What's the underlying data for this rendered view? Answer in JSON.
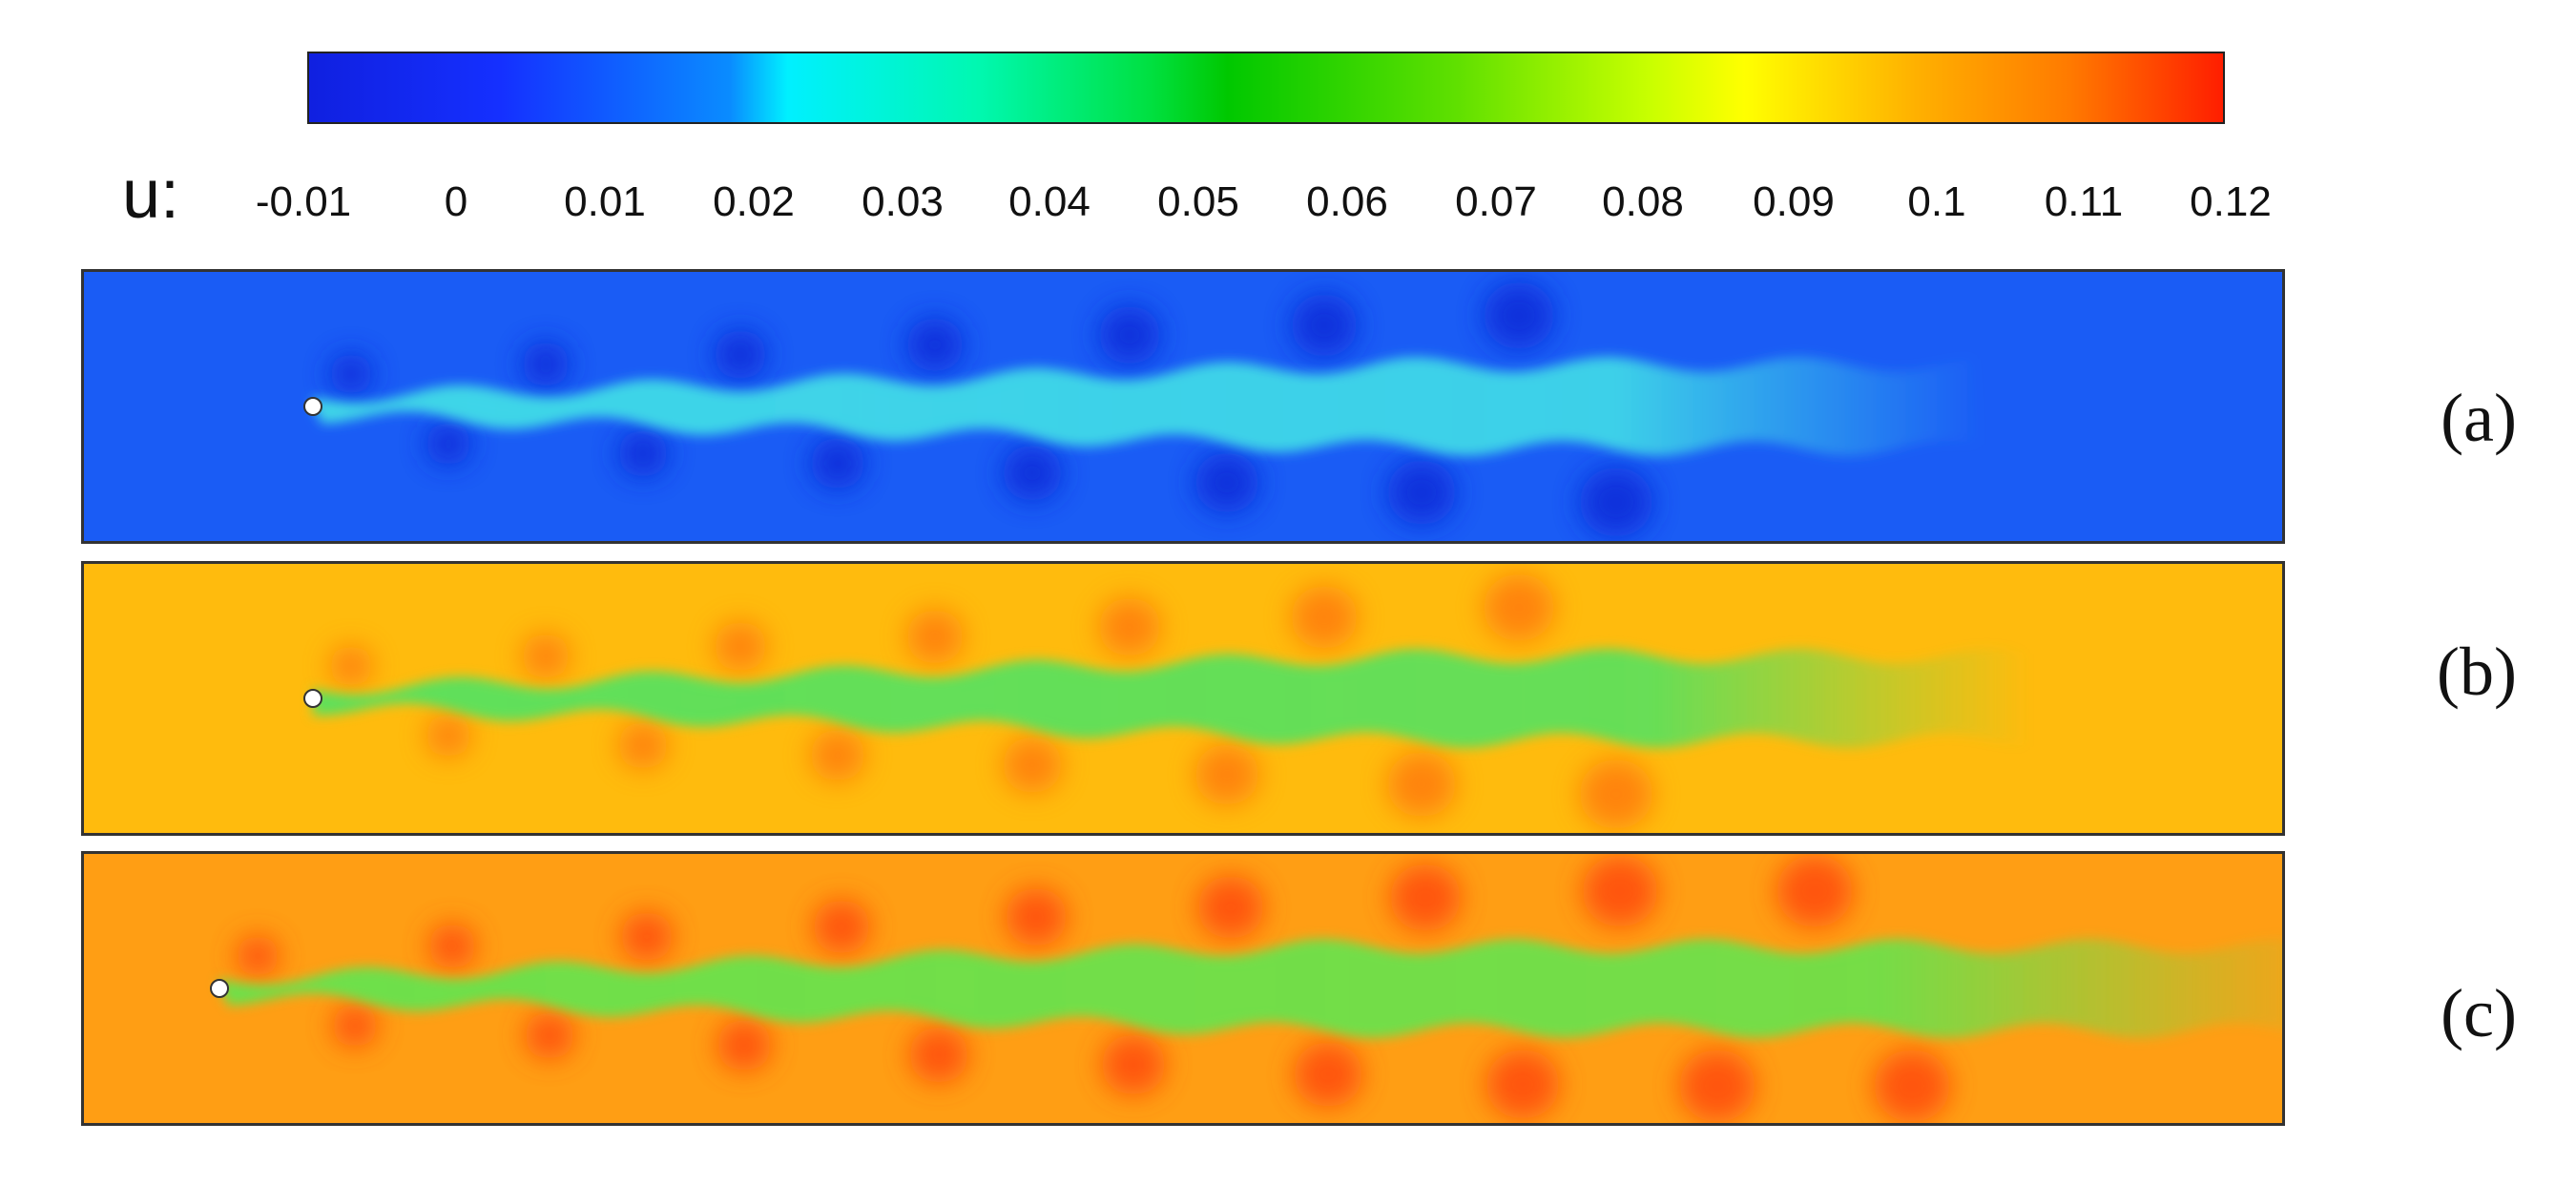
{
  "colorbar": {
    "variable_label": "u:",
    "ticks": [
      "-0.01",
      "0",
      "0.01",
      "0.02",
      "0.03",
      "0.04",
      "0.05",
      "0.06",
      "0.07",
      "0.08",
      "0.09",
      "0.1",
      "0.11",
      "0.12"
    ],
    "colors": [
      "#1020e0",
      "#0a8cff",
      "#00f0ff",
      "#00e040",
      "#c8ff00",
      "#ffff00",
      "#ff7a00",
      "#ff1e00"
    ]
  },
  "panels": [
    {
      "label": "(a)",
      "background": "#1a5cf5",
      "wake": "#3fd6e8",
      "vortex_lobes": "#0a2ad8"
    },
    {
      "label": "(b)",
      "background": "#ffbb0d",
      "wake": "#5fe05a",
      "vortex_lobes": "#ff7a10"
    },
    {
      "label": "(c)",
      "background": "#ff9e14",
      "wake": "#6ee04a",
      "vortex_lobes": "#ff4a0a"
    }
  ]
}
